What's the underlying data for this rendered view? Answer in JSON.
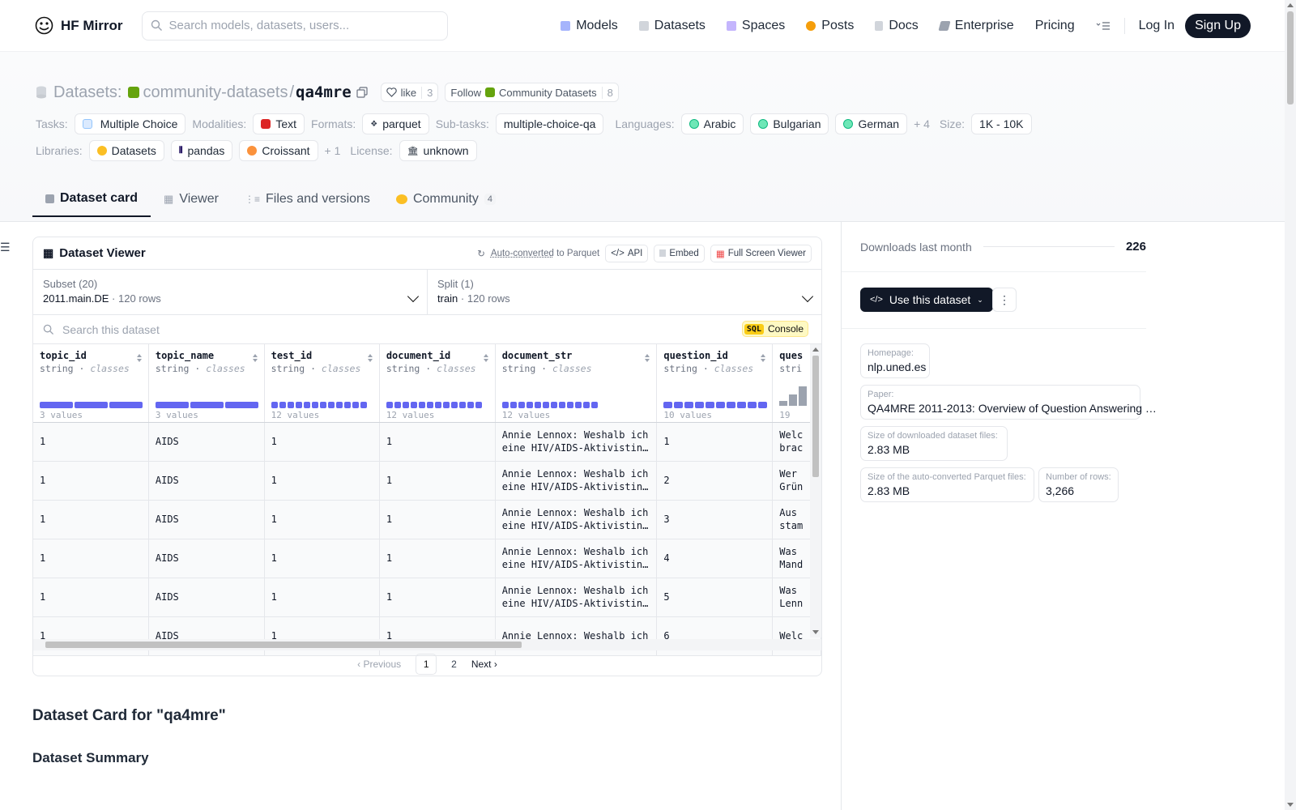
{
  "navbar": {
    "brand": "HF Mirror",
    "search_placeholder": "Search models, datasets, users...",
    "links": [
      "Models",
      "Datasets",
      "Spaces",
      "Posts",
      "Docs",
      "Enterprise",
      "Pricing"
    ],
    "login": "Log In",
    "signup": "Sign Up"
  },
  "header": {
    "section": "Datasets:",
    "owner": "community-datasets",
    "sep": "/",
    "name": "qa4mre",
    "like_label": "like",
    "like_count": "3",
    "follow_label": "Follow",
    "follow_org": "Community Datasets",
    "follow_count": "8",
    "tasks_label": "Tasks:",
    "task": "Multiple Choice",
    "modalities_label": "Modalities:",
    "modality": "Text",
    "formats_label": "Formats:",
    "format": "parquet",
    "subtasks_label": "Sub-tasks:",
    "subtask": "multiple-choice-qa",
    "languages_label": "Languages:",
    "languages": [
      "Arabic",
      "Bulgarian",
      "German"
    ],
    "languages_more": "+ 4",
    "size_label": "Size:",
    "size": "1K - 10K",
    "libraries_label": "Libraries:",
    "libraries": [
      "Datasets",
      "pandas",
      "Croissant"
    ],
    "libraries_more": "+ 1",
    "license_label": "License:",
    "license": "unknown"
  },
  "tabs": [
    {
      "label": "Dataset card"
    },
    {
      "label": "Viewer"
    },
    {
      "label": "Files and versions"
    },
    {
      "label": "Community",
      "badge": "4"
    }
  ],
  "viewer": {
    "title": "Dataset Viewer",
    "auto_converted": "Auto-converted",
    "to_parquet": "to Parquet",
    "api": "API",
    "embed": "Embed",
    "full_screen": "Full Screen Viewer",
    "subset_label": "Subset (20)",
    "subset_value": "2011.main.DE",
    "subset_rows": "120 rows",
    "split_label": "Split (1)",
    "split_value": "train",
    "split_rows": "120 rows",
    "search_placeholder": "Search this dataset",
    "sql": "SQL",
    "console": "Console",
    "columns": [
      {
        "name": "topic_id",
        "type": "string",
        "kind": "classes",
        "values": "3 values"
      },
      {
        "name": "topic_name",
        "type": "string",
        "kind": "classes",
        "values": "3 values"
      },
      {
        "name": "test_id",
        "type": "string",
        "kind": "classes",
        "values": "12 values"
      },
      {
        "name": "document_id",
        "type": "string",
        "kind": "classes",
        "values": "12 values"
      },
      {
        "name": "document_str",
        "type": "string",
        "kind": "classes",
        "values": "12 values"
      },
      {
        "name": "question_id",
        "type": "string",
        "kind": "classes",
        "values": "10 values"
      },
      {
        "name": "ques",
        "type": "stri",
        "kind": "",
        "values": "19"
      }
    ],
    "rows": [
      [
        "1",
        "AIDS",
        "1",
        "1",
        "Annie Lennox: Weshalb ich eine HIV/AIDS-Aktivistin…",
        "1",
        "Welc brac"
      ],
      [
        "1",
        "AIDS",
        "1",
        "1",
        "Annie Lennox: Weshalb ich eine HIV/AIDS-Aktivistin…",
        "2",
        "Wer Grün"
      ],
      [
        "1",
        "AIDS",
        "1",
        "1",
        "Annie Lennox: Weshalb ich eine HIV/AIDS-Aktivistin…",
        "3",
        "Aus stam"
      ],
      [
        "1",
        "AIDS",
        "1",
        "1",
        "Annie Lennox: Weshalb ich eine HIV/AIDS-Aktivistin…",
        "4",
        "Was Mand"
      ],
      [
        "1",
        "AIDS",
        "1",
        "1",
        "Annie Lennox: Weshalb ich eine HIV/AIDS-Aktivistin…",
        "5",
        "Was Lenn"
      ],
      [
        "1",
        "AIDS",
        "1",
        "1",
        "Annie Lennox: Weshalb ich",
        "6",
        "Welc"
      ]
    ],
    "previous": "Previous",
    "pages": [
      "1",
      "2"
    ],
    "next": "Next"
  },
  "card": {
    "title": "Dataset Card for \"qa4mre\"",
    "summary_heading": "Dataset Summary"
  },
  "sidebar": {
    "downloads_label": "Downloads last month",
    "downloads_value": "226",
    "use_button": "Use this dataset",
    "homepage_label": "Homepage:",
    "homepage": "nlp.uned.es",
    "paper_label": "Paper:",
    "paper": "QA4MRE 2011-2013: Overview of Question Answering …",
    "size_files_label": "Size of downloaded dataset files:",
    "size_files": "2.83 MB",
    "size_parquet_label": "Size of the auto-converted Parquet files:",
    "size_parquet": "2.83 MB",
    "rows_label": "Number of rows:",
    "rows": "3,266"
  },
  "colors": {
    "accent": "#6366f1",
    "dark": "#111827",
    "sql_yellow": "#facc15"
  }
}
